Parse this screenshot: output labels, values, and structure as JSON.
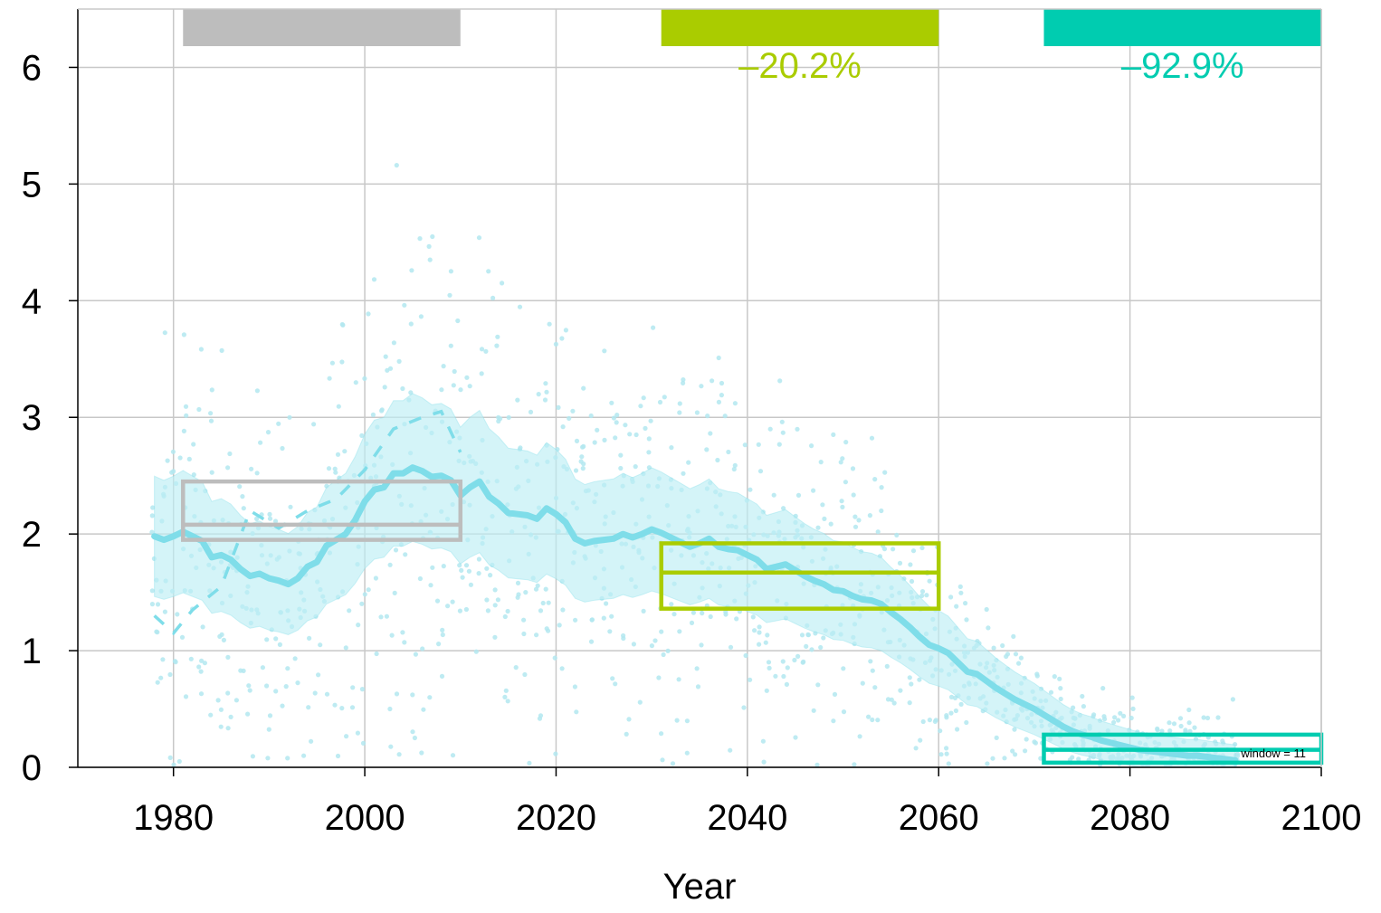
{
  "chart_data": {
    "type": "line",
    "title": "",
    "xlabel": "Year",
    "ylabel": "",
    "xlim": [
      1970,
      2100
    ],
    "ylim": [
      0,
      6.5
    ],
    "grid": true,
    "x_ticks": [
      "1980",
      "2000",
      "2020",
      "2040",
      "2060",
      "2080",
      "2100"
    ],
    "y_ticks": [
      "0",
      "1",
      "2",
      "3",
      "4",
      "5",
      "6"
    ],
    "window_label": "window = 11",
    "colors": {
      "series": "#7fdde9",
      "band": "#bdeef5",
      "points": "#b3e8f0",
      "reference": "#bdbdbd",
      "mid_century": "#aacc00",
      "end_century": "#00ccb0",
      "grid": "#c8c8c8"
    },
    "series": [
      {
        "name": "",
        "x": [
          1978,
          1979,
          1980,
          1981,
          1982,
          1983,
          1984,
          1985,
          1986,
          1987,
          1988,
          1989,
          1990,
          1991,
          1992,
          1993,
          1994,
          1995,
          1996,
          1997,
          1998,
          1999,
          2000,
          2001,
          2002,
          2003,
          2004,
          2005,
          2006,
          2007,
          2008,
          2009,
          2010,
          2011,
          2012,
          2013,
          2014,
          2015,
          2016,
          2017,
          2018,
          2019,
          2020,
          2021,
          2022,
          2023,
          2024,
          2025,
          2026,
          2027,
          2028,
          2029,
          2030,
          2031,
          2032,
          2033,
          2034,
          2035,
          2036,
          2037,
          2038,
          2039,
          2040,
          2041,
          2042,
          2043,
          2044,
          2045,
          2046,
          2047,
          2048,
          2049,
          2050,
          2051,
          2052,
          2053,
          2054,
          2055,
          2056,
          2057,
          2058,
          2059,
          2060,
          2061,
          2062,
          2063,
          2064,
          2065,
          2066,
          2067,
          2068,
          2069,
          2070,
          2071,
          2072,
          2073,
          2074,
          2075,
          2076,
          2077,
          2078,
          2079,
          2080,
          2081,
          2082,
          2083,
          2084,
          2085,
          2086,
          2087,
          2088,
          2089,
          2090,
          2091
        ],
        "y": [
          1.98,
          1.95,
          1.98,
          2.02,
          1.98,
          1.94,
          1.8,
          1.82,
          1.78,
          1.7,
          1.64,
          1.66,
          1.62,
          1.6,
          1.57,
          1.62,
          1.72,
          1.76,
          1.9,
          1.95,
          2.0,
          2.12,
          2.28,
          2.38,
          2.4,
          2.52,
          2.52,
          2.57,
          2.54,
          2.49,
          2.5,
          2.46,
          2.33,
          2.4,
          2.45,
          2.32,
          2.26,
          2.18,
          2.17,
          2.16,
          2.13,
          2.22,
          2.17,
          2.1,
          1.96,
          1.92,
          1.94,
          1.95,
          1.96,
          2.0,
          1.97,
          2.0,
          2.04,
          2.01,
          1.97,
          1.93,
          1.89,
          1.92,
          1.96,
          1.89,
          1.87,
          1.86,
          1.82,
          1.78,
          1.7,
          1.72,
          1.74,
          1.69,
          1.64,
          1.6,
          1.57,
          1.52,
          1.51,
          1.47,
          1.44,
          1.43,
          1.4,
          1.33,
          1.27,
          1.2,
          1.12,
          1.05,
          1.02,
          0.98,
          0.9,
          0.82,
          0.8,
          0.74,
          0.68,
          0.63,
          0.58,
          0.54,
          0.5,
          0.45,
          0.4,
          0.35,
          0.31,
          0.28,
          0.26,
          0.23,
          0.21,
          0.19,
          0.17,
          0.15,
          0.14,
          0.13,
          0.12,
          0.11,
          0.1,
          0.1,
          0.09,
          0.08,
          0.07,
          0.06
        ]
      }
    ],
    "reference_series_dashed": {
      "x": [
        1978,
        1980,
        1982,
        1985,
        1988,
        1991,
        1994,
        1997,
        2000,
        2003,
        2006,
        2008,
        2010
      ],
      "y": [
        1.3,
        1.15,
        1.35,
        1.55,
        2.2,
        2.05,
        2.2,
        2.3,
        2.55,
        2.9,
        3.0,
        3.05,
        2.7
      ]
    },
    "periods": [
      {
        "start": 1981,
        "end": 2010,
        "low": 1.95,
        "mid": 2.08,
        "high": 2.45,
        "label": "",
        "color": "#bdbdbd"
      },
      {
        "start": 2031,
        "end": 2060,
        "low": 1.36,
        "mid": 1.67,
        "high": 1.92,
        "label": "–20.2%",
        "color": "#aacc00"
      },
      {
        "start": 2071,
        "end": 2100,
        "low": 0.04,
        "mid": 0.15,
        "high": 0.28,
        "label": "–92.9%",
        "color": "#00ccb0"
      }
    ]
  }
}
